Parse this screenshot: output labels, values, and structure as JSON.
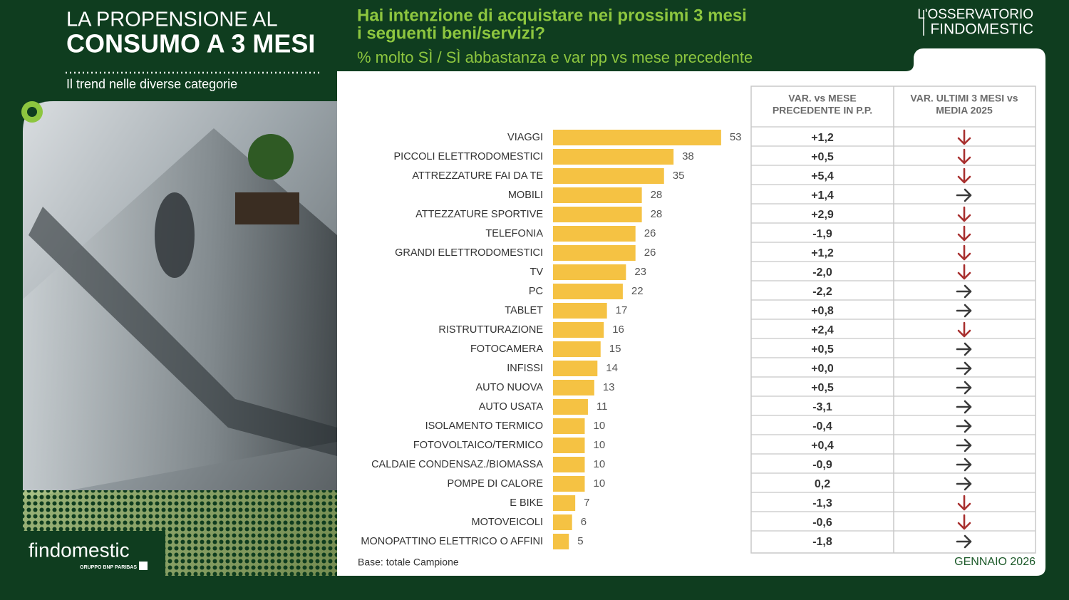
{
  "header": {
    "title_lines": [
      "LA PROPENSIONE AL",
      "CONSUMO A 3 MESI"
    ],
    "subtitle": "Il trend nelle diverse categorie",
    "question_lines": [
      "Hai intenzione di acquistare nei prossimi 3 mesi",
      "i seguenti beni/servizi?"
    ],
    "measure": "% molto SÌ / SÌ abbastanza e var pp vs mese precedente"
  },
  "logo": {
    "lines": [
      "L'OSSERVATORIO",
      "FINDOMESTIC"
    ]
  },
  "chart_data": {
    "type": "hbar",
    "color": "#f5c243",
    "categories": [
      "VIAGGI",
      "PICCOLI ELETTRODOMESTICI",
      "ATTREZZATURE FAI DA TE",
      "MOBILI",
      "ATTEZZATURE SPORTIVE",
      "TELEFONIA",
      "GRANDI ELETTRODOMESTICI",
      "TV",
      "PC",
      "TABLET",
      "RISTRUTTURAZIONE",
      "FOTOCAMERA",
      "INFISSI",
      "AUTO NUOVA",
      "AUTO USATA",
      "ISOLAMENTO TERMICO",
      "FOTOVOLTAICO/TERMICO",
      "CALDAIE CONDENSAZ./BIOMASSA",
      "POMPE DI CALORE",
      "E BIKE",
      "MOTOVEICOLI",
      "MONOPATTINO ELETTRICO O AFFINI"
    ],
    "values": [
      53,
      38,
      35,
      28,
      28,
      26,
      26,
      23,
      22,
      17,
      16,
      15,
      14,
      13,
      11,
      10,
      10,
      10,
      10,
      7,
      6,
      5
    ]
  },
  "table": {
    "headers": [
      [
        "VAR. vs MESE",
        "PRECEDENTE IN P.P."
      ],
      [
        "VAR. ULTIMI 3 MESI vs",
        "MEDIA 2025"
      ]
    ],
    "var_pp": [
      "+1,2",
      "+0,5",
      "+5,4",
      "+1,4",
      "+2,9",
      "-1,9",
      "+1,2",
      "-2,0",
      "-2,2",
      "+0,8",
      "+2,4",
      "+0,5",
      "+0,0",
      "+0,5",
      "-3,1",
      "-0,4",
      "+0,4",
      "-0,9",
      "0,2",
      "-1,3",
      "-0,6",
      "-1,8"
    ],
    "trend": [
      "down",
      "down",
      "down",
      "right",
      "down",
      "down",
      "down",
      "down",
      "right",
      "right",
      "down",
      "right",
      "right",
      "right",
      "right",
      "right",
      "right",
      "right",
      "right",
      "down",
      "down",
      "right"
    ],
    "trend_colors": {
      "down": "#a8302f",
      "right": "#3a3a3a"
    }
  },
  "footer": {
    "base": "Base: totale Campione",
    "date": "GENNAIO 2026"
  },
  "brand": {
    "name": "findomestic",
    "group": "GRUPPO BNP PARIBAS"
  }
}
